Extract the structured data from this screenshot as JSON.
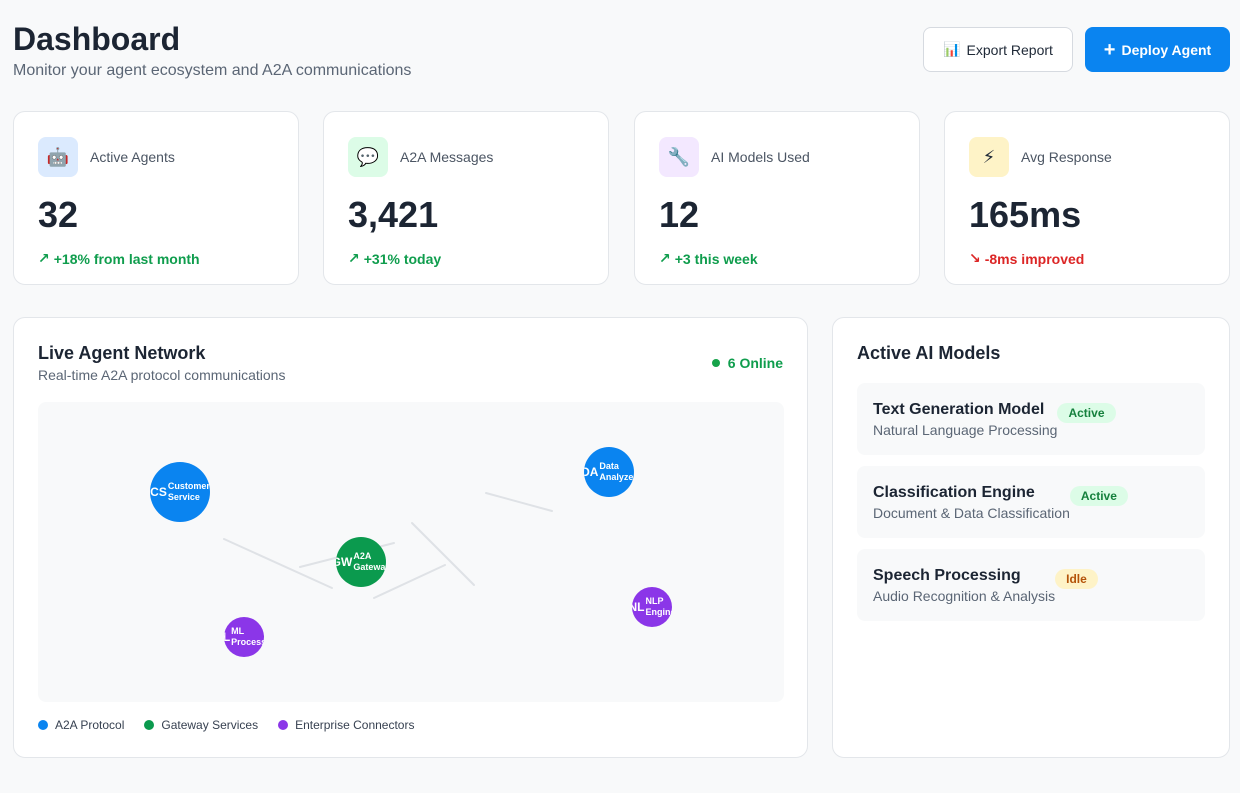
{
  "header": {
    "title": "Dashboard",
    "subtitle": "Monitor your agent ecosystem and A2A communications"
  },
  "actions": {
    "export_label": "Export Report",
    "export_icon": "📊",
    "deploy_label": "Deploy Agent",
    "deploy_icon": "+"
  },
  "stats": [
    {
      "label": "Active Agents",
      "value": "32",
      "delta": "+18% from last month",
      "trend": "up",
      "icon": "🤖",
      "icon_name": "robot-icon",
      "icon_bg": "#dbeafe"
    },
    {
      "label": "A2A Messages",
      "value": "3,421",
      "delta": "+31% today",
      "trend": "up",
      "icon": "💬",
      "icon_name": "chat-bubble-icon",
      "icon_bg": "#dcfce7"
    },
    {
      "label": "AI Models Used",
      "value": "12",
      "delta": "+3 this week",
      "trend": "up",
      "icon": "🔧",
      "icon_name": "wrench-icon",
      "icon_bg": "#f3e8ff"
    },
    {
      "label": "Avg Response",
      "value": "165ms",
      "delta": "-8ms improved",
      "trend": "down",
      "icon": "⚡",
      "icon_name": "lightning-icon",
      "icon_bg": "#fef3c7"
    }
  ],
  "network": {
    "title": "Live Agent Network",
    "subtitle": "Real-time A2A protocol communications",
    "online_label": "6 Online",
    "nodes": [
      {
        "abbr": "CS",
        "label": "Customer\nService",
        "group": "blue"
      },
      {
        "abbr": "DA",
        "label": "Data\nAnalyzer",
        "group": "blue"
      },
      {
        "abbr": "GW",
        "label": "A2A\nGateway",
        "group": "green"
      },
      {
        "abbr": "NL",
        "label": "NLP\nEngine",
        "group": "purple"
      },
      {
        "abbr": "ML",
        "label": "ML\nProcessor",
        "group": "purple"
      }
    ],
    "legend": [
      {
        "label": "A2A Protocol",
        "color": "#0a84f0"
      },
      {
        "label": "Gateway Services",
        "color": "#0b9a4e"
      },
      {
        "label": "Enterprise Connectors",
        "color": "#8b36e8"
      }
    ]
  },
  "models": {
    "title": "Active AI Models",
    "items": [
      {
        "name": "Text Generation Model",
        "desc": "Natural Language Processing",
        "status": "Active"
      },
      {
        "name": "Classification Engine",
        "desc": "Document & Data Classification",
        "status": "Active"
      },
      {
        "name": "Speech Processing",
        "desc": "Audio Recognition & Analysis",
        "status": "Idle"
      }
    ]
  }
}
